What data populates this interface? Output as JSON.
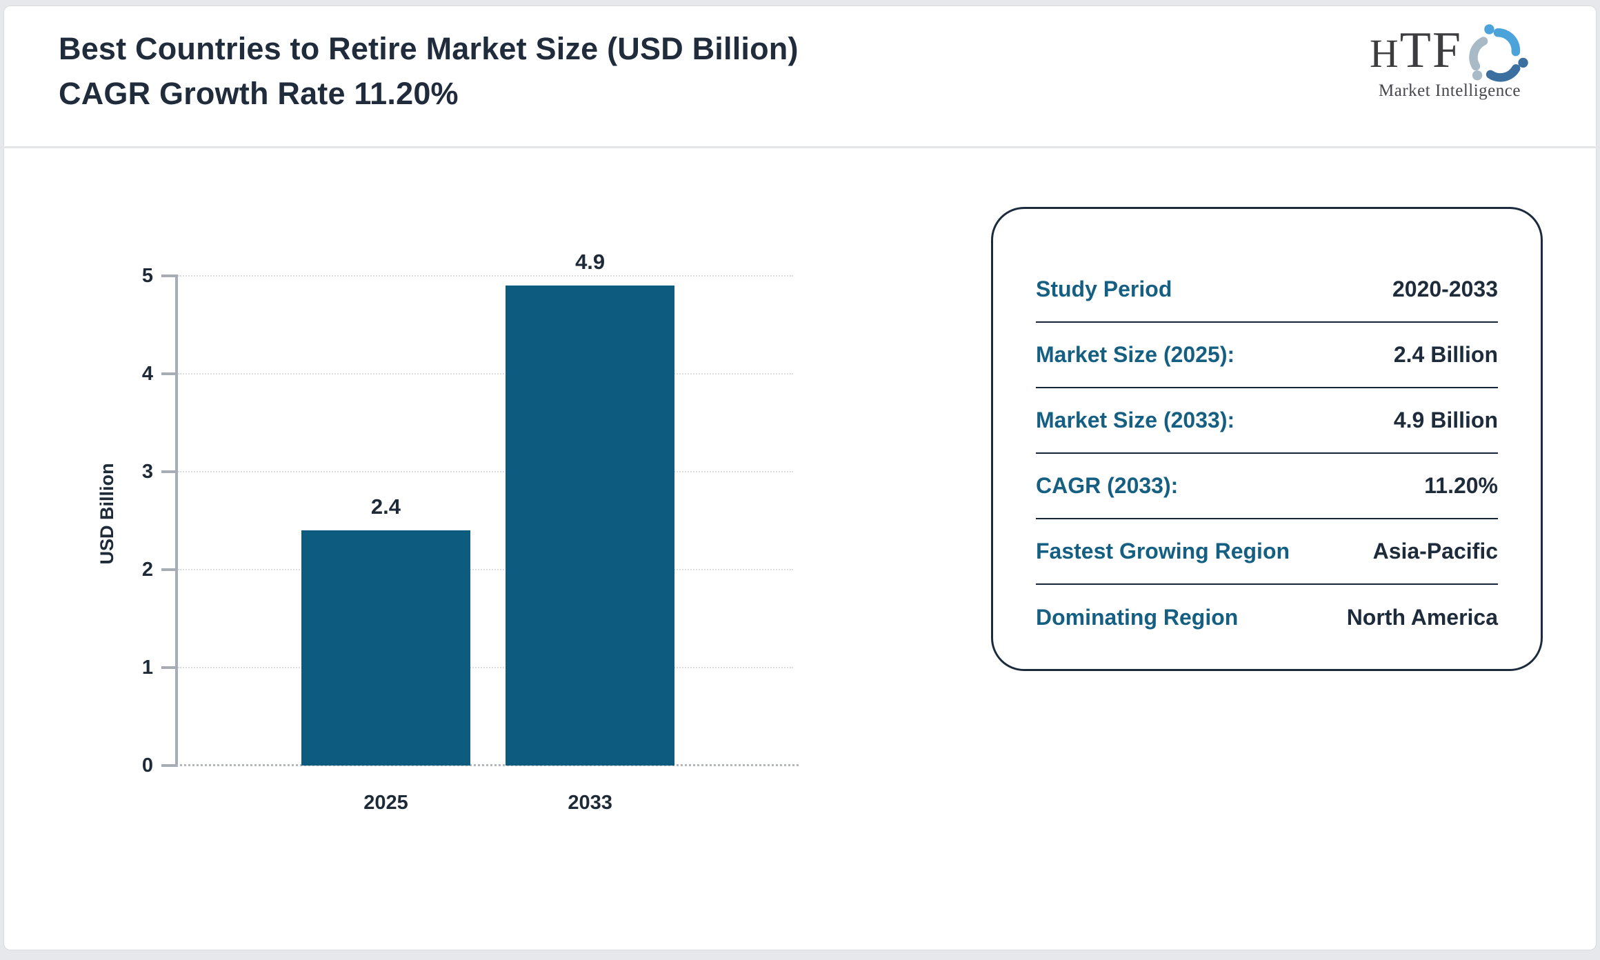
{
  "header": {
    "title": "Best Countries to Retire Market Size (USD Billion) CAGR Growth Rate 11.20%",
    "logo": {
      "name": "HTF",
      "subtitle": "Market Intelligence",
      "icon": "three-figures-swirl-icon",
      "icon_colors": [
        "#4ba3d9",
        "#3a6f9f",
        "#a9bac7"
      ]
    }
  },
  "chart_data": {
    "type": "bar",
    "title": "Best Countries to Retire Market Size (USD Billion) CAGR Growth Rate 11.20%",
    "categories": [
      "2025",
      "2033"
    ],
    "values": [
      2.4,
      4.9
    ],
    "value_labels": [
      "2.4",
      "4.9"
    ],
    "xlabel": "",
    "ylabel": "USD Billion",
    "ylim": [
      0,
      5
    ],
    "yticks": [
      0,
      1,
      2,
      3,
      4,
      5
    ],
    "grid": "horizontal dotted gridlines, dotted baseline",
    "legend_position": "none",
    "bar_color": "#0d5c80"
  },
  "summary_panel": {
    "rows": [
      {
        "label": "Study Period",
        "value": "2020-2033"
      },
      {
        "label": "Market Size (2025):",
        "value": "2.4 Billion"
      },
      {
        "label": "Market Size (2033):",
        "value": "4.9 Billion"
      },
      {
        "label": "CAGR (2033):",
        "value": "11.20%"
      },
      {
        "label": "Fastest Growing Region",
        "value": "Asia-Pacific"
      },
      {
        "label": "Dominating Region",
        "value": "North America"
      }
    ]
  }
}
